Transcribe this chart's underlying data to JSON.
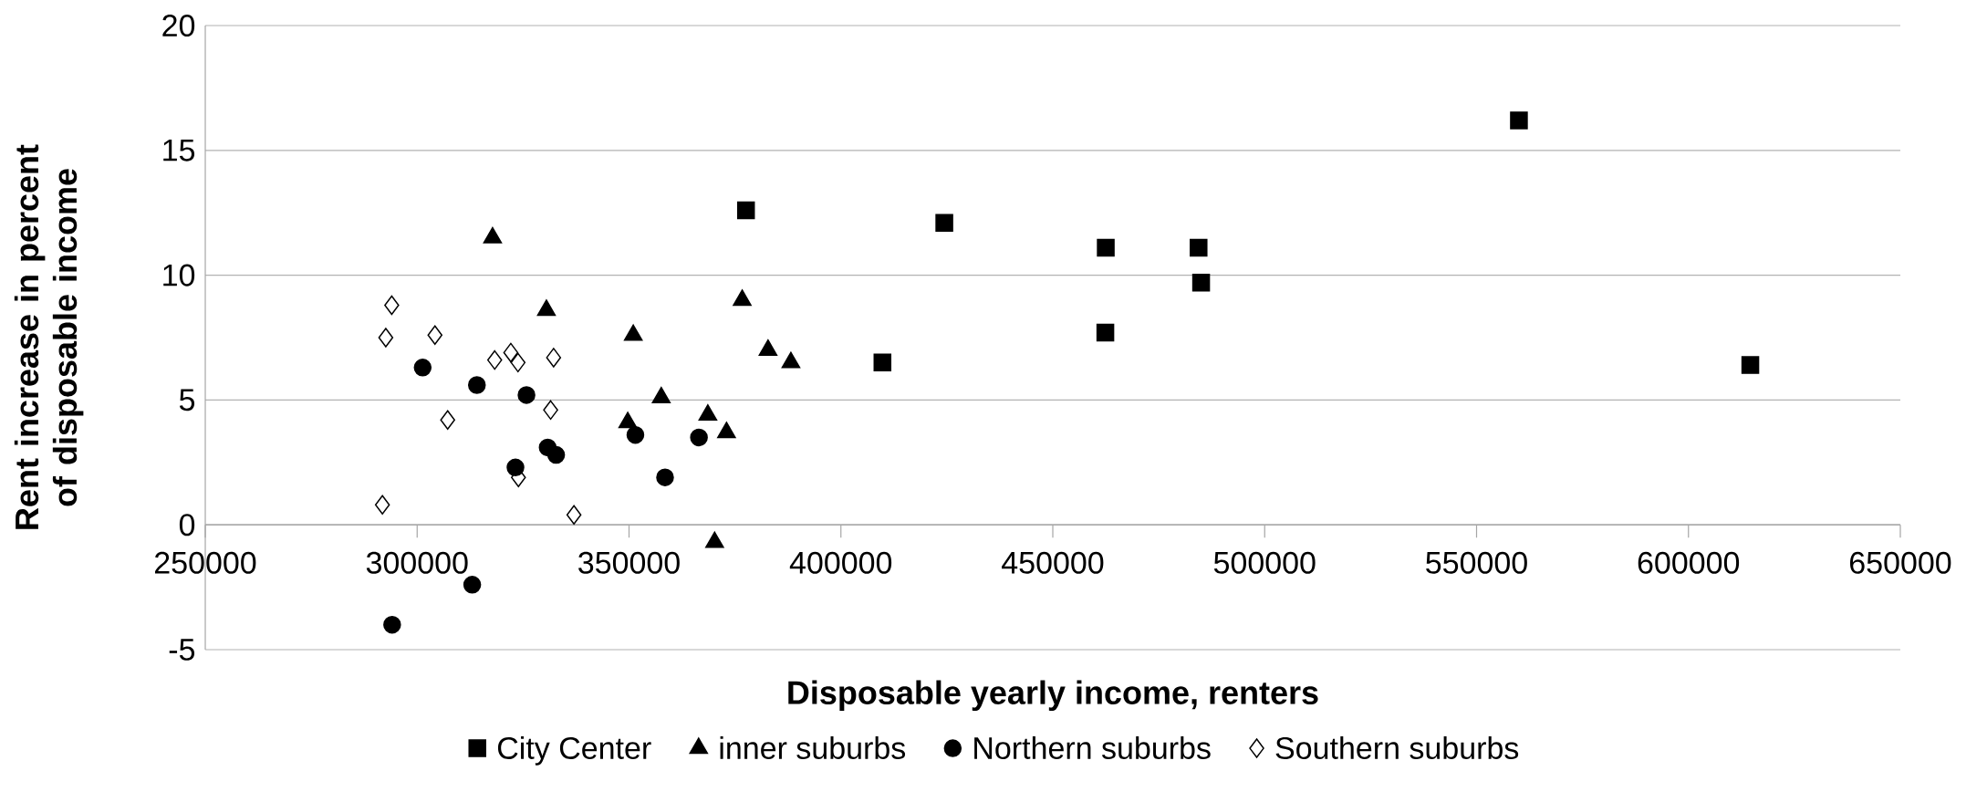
{
  "chart_data": {
    "type": "scatter",
    "xlabel": "Disposable yearly income, renters",
    "ylabel": "Rent increase in percent of disposable income",
    "xlim": [
      250000,
      650000
    ],
    "ylim": [
      -5,
      20
    ],
    "xticks": [
      250000,
      300000,
      350000,
      400000,
      450000,
      500000,
      550000,
      600000,
      650000
    ],
    "yticks": [
      -5,
      0,
      5,
      10,
      15,
      20
    ],
    "grid": "y",
    "legend": "bottom",
    "series": [
      {
        "name": "City Center",
        "color": "#000000",
        "marker": "square",
        "x": [
          377600,
          424400,
          409800,
          560000,
          462500,
          484400,
          485000,
          462400,
          614600
        ],
        "values": [
          12.6,
          12.1,
          6.5,
          16.2,
          11.1,
          11.1,
          9.7,
          7.7,
          6.4
        ]
      },
      {
        "name": "inner suburbs",
        "color": "#000000",
        "marker": "triangle",
        "x": [
          317800,
          330500,
          351000,
          357600,
          349700,
          368600,
          373000,
          370200,
          376700,
          382800,
          388200
        ],
        "values": [
          11.5,
          8.6,
          7.6,
          5.1,
          4.1,
          4.4,
          3.7,
          -0.7,
          9.0,
          7.0,
          6.5
        ]
      },
      {
        "name": "Northern suburbs",
        "color": "#000000",
        "marker": "circle",
        "x": [
          301300,
          314100,
          325800,
          330800,
          332800,
          323200,
          313000,
          294100,
          351500,
          366500,
          358500
        ],
        "values": [
          6.3,
          5.6,
          5.2,
          3.1,
          2.8,
          2.3,
          -2.4,
          -4.0,
          3.6,
          3.5,
          1.9
        ]
      },
      {
        "name": "Southern suburbs",
        "color": "#000000",
        "marker": "diamond",
        "x": [
          294000,
          292600,
          304200,
          318300,
          322100,
          323800,
          332200,
          307200,
          331500,
          323900,
          291800,
          337000
        ],
        "values": [
          8.8,
          7.5,
          7.6,
          6.6,
          6.9,
          6.5,
          6.7,
          4.2,
          4.6,
          1.9,
          0.8,
          0.4
        ]
      }
    ]
  }
}
